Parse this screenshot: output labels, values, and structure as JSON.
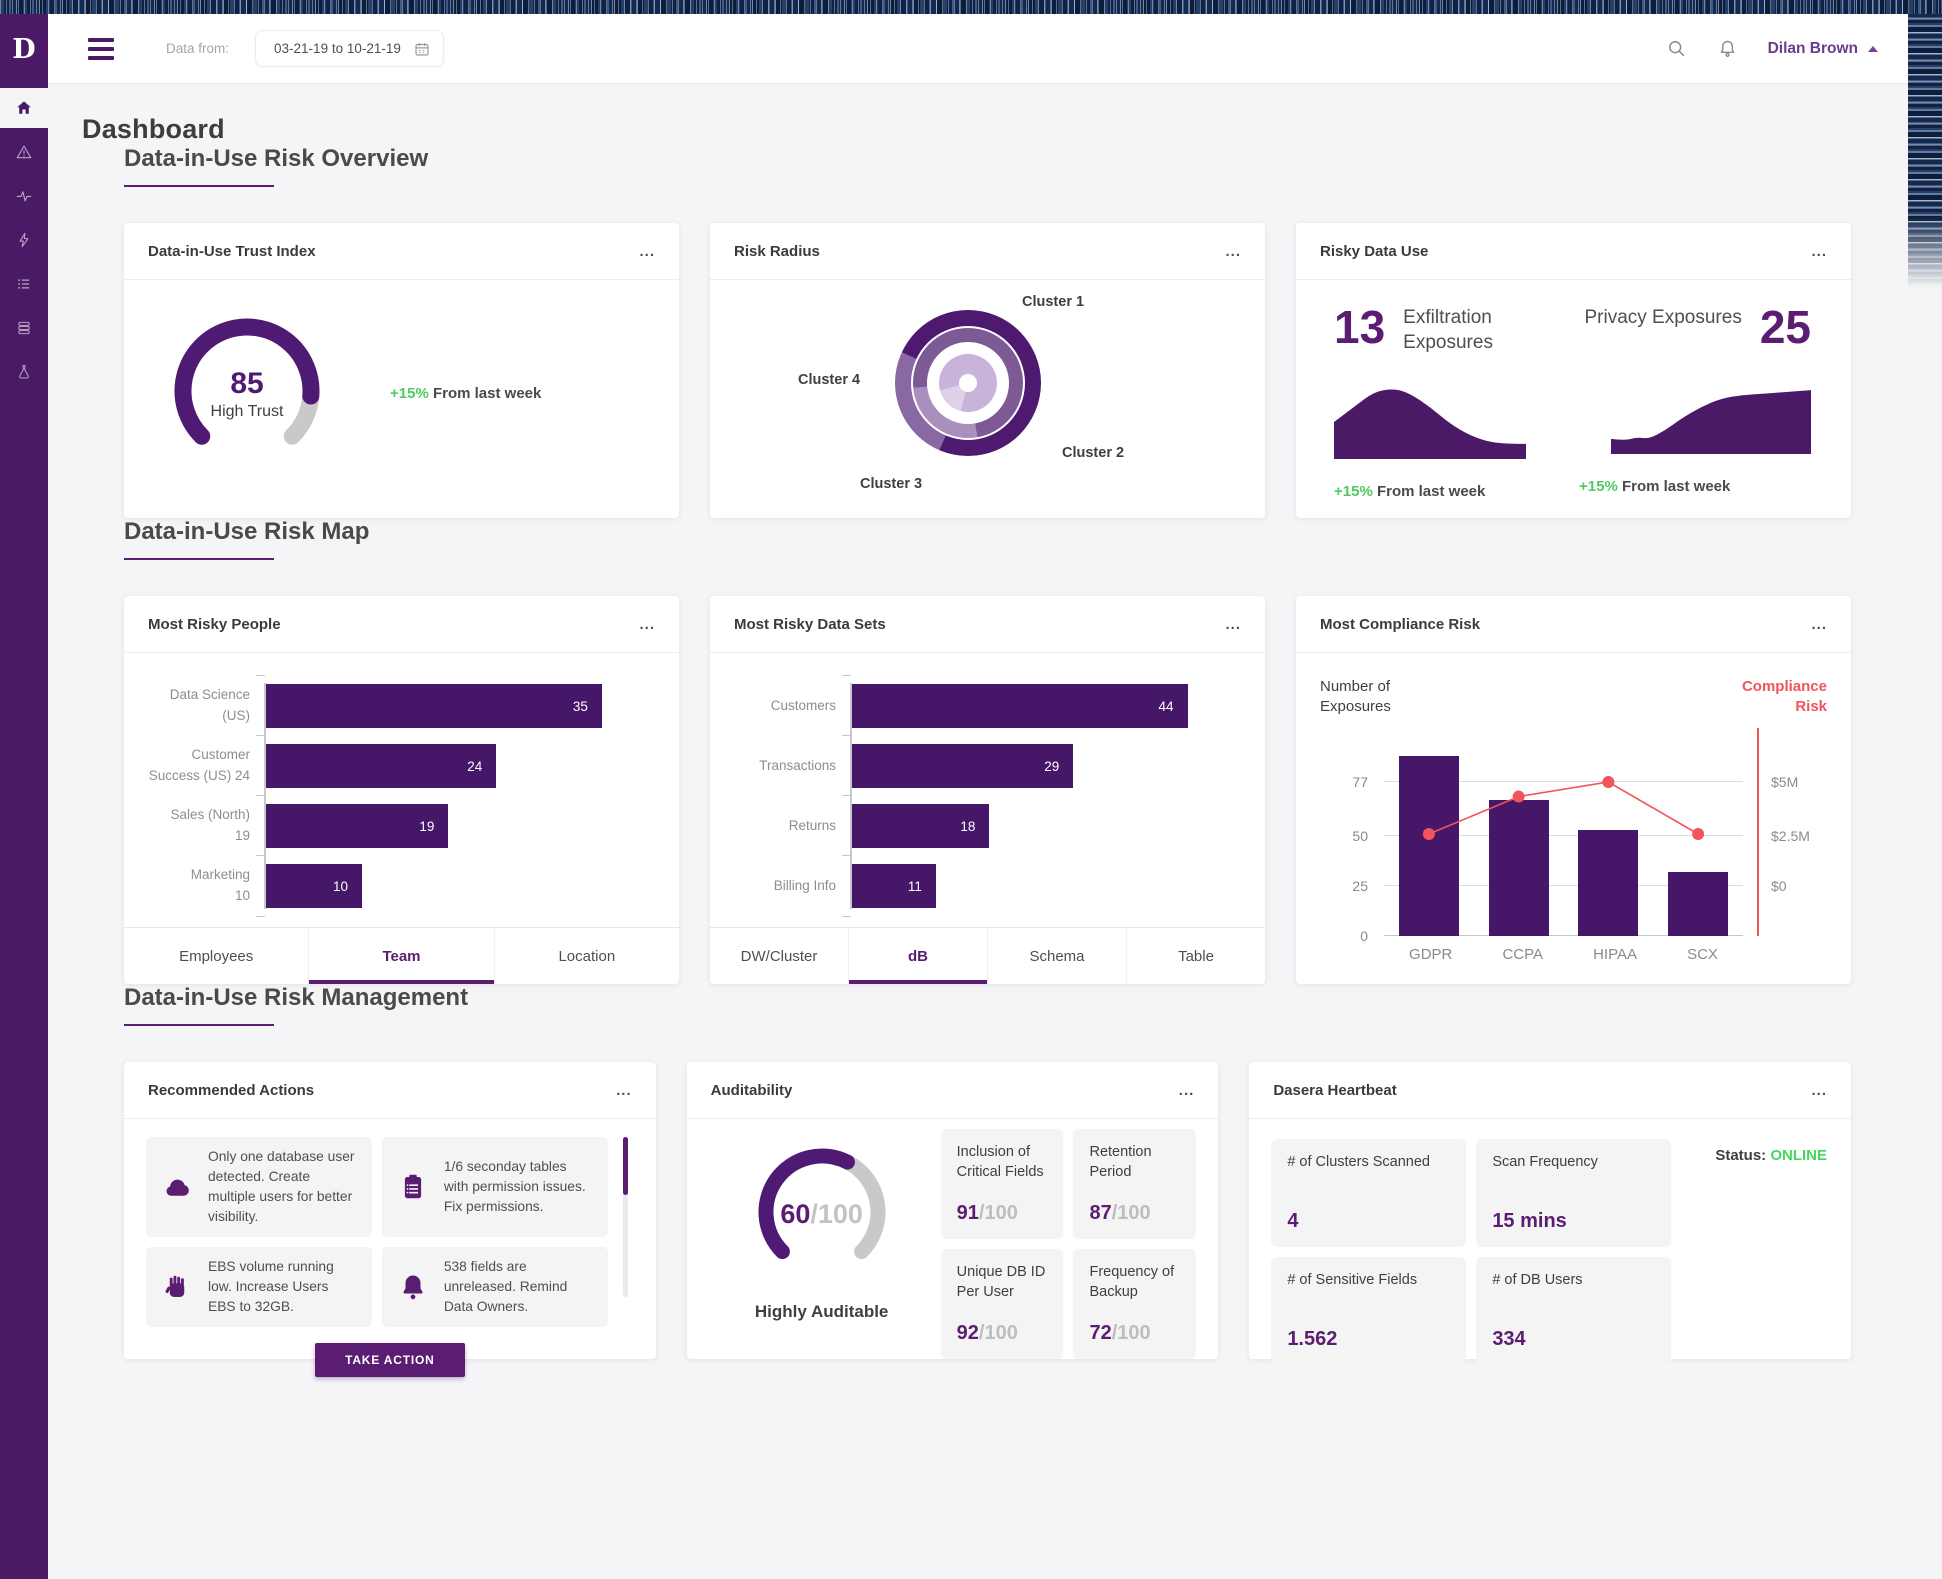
{
  "colors": {
    "brand_purple": "#4a1a66",
    "accent_purple": "#5b1d72",
    "bar_purple": "#461769",
    "gauge_purple": "#4f1a73",
    "gauge_track_gray": "#c9c9c9",
    "coral": "#f2545b",
    "green": "#4ecb5c",
    "status_green": "#44d95c"
  },
  "topbar": {
    "data_from_label": "Data from:",
    "date_range": "03-21-19 to 10-21-19",
    "user_name": "Dilan Brown",
    "icons": [
      "hamburger-icon",
      "calendar-icon",
      "search-icon",
      "bell-icon",
      "caret-up-icon"
    ]
  },
  "sidebar": {
    "logo_text": "D",
    "items": [
      {
        "name": "home",
        "icon": "home-icon",
        "active": true
      },
      {
        "name": "alerts",
        "icon": "warning-triangle-icon",
        "active": false
      },
      {
        "name": "activity",
        "icon": "pulse-icon",
        "active": false
      },
      {
        "name": "quick-actions",
        "icon": "lightning-icon",
        "active": false
      },
      {
        "name": "policies",
        "icon": "bullet-list-icon",
        "active": false
      },
      {
        "name": "data-stores",
        "icon": "stack-icon",
        "active": false
      },
      {
        "name": "labs",
        "icon": "flask-icon",
        "active": false
      }
    ]
  },
  "page_title": "Dashboard",
  "sections": {
    "overview": "Data-in-Use Risk Overview",
    "map": "Data-in-Use Risk Map",
    "management": "Data-in-Use Risk Management"
  },
  "cards": {
    "trust": {
      "title": "Data-in-Use Trust Index",
      "menu": "...",
      "value": "85",
      "label": "High Trust",
      "delta": "+15%",
      "delta_text": " From last week"
    },
    "radius": {
      "title": "Risk Radius",
      "menu": "...",
      "clusters": [
        "Cluster 1",
        "Cluster 2",
        "Cluster 3",
        "Cluster 4"
      ]
    },
    "risky_use": {
      "title": "Risky Data Use",
      "menu": "...",
      "left": {
        "value": "13",
        "label": "Exfiltration Exposures",
        "delta": "+15%",
        "delta_text": " From last week"
      },
      "right": {
        "value": "25",
        "label": "Privacy Exposures",
        "delta": "+15%",
        "delta_text": " From last week"
      }
    },
    "people": {
      "title": "Most Risky People",
      "menu": "...",
      "tabs": [
        "Employees",
        "Team",
        "Location"
      ],
      "active_tab": "Team"
    },
    "datasets": {
      "title": "Most Risky Data Sets",
      "menu": "...",
      "tabs": [
        "DW/Cluster",
        "dB",
        "Schema",
        "Table"
      ],
      "active_tab": "dB"
    },
    "compliance": {
      "title": "Most Compliance Risk",
      "menu": "...",
      "left_axis_title": "Number of Exposures",
      "right_axis_title": "Compliance Risk"
    },
    "actions": {
      "title": "Recommended Actions",
      "menu": "...",
      "button_label": "TAKE ACTION",
      "items": [
        {
          "icon": "cloud-icon",
          "text": "Only one database user detected. Create multiple users for better visibility."
        },
        {
          "icon": "clipboard-icon",
          "text": "1/6 seconday tables with permission issues. Fix permissions."
        },
        {
          "icon": "hand-icon",
          "text": "EBS volume running low. Increase Users  EBS to 32GB."
        },
        {
          "icon": "bell-icon",
          "text": "538 fields are unreleased. Remind Data Owners."
        }
      ]
    },
    "auditability": {
      "title": "Auditability",
      "menu": "...",
      "gauge_value": "60",
      "gauge_suffix": "/100",
      "gauge_label": "Highly Auditable",
      "stats": [
        {
          "label": "Inclusion of Critical Fields",
          "value": "91",
          "suffix": "/100"
        },
        {
          "label": "Retention Period",
          "value": "87",
          "suffix": "/100"
        },
        {
          "label": "Unique DB ID Per User",
          "value": "92",
          "suffix": "/100"
        },
        {
          "label": "Frequency of Backup",
          "value": "72",
          "suffix": "/100"
        }
      ]
    },
    "heartbeat": {
      "title": "Dasera Heartbeat",
      "menu": "...",
      "stats": [
        {
          "label": "# of Clusters Scanned",
          "value": "4"
        },
        {
          "label": "Scan Frequency",
          "value": "15 mins"
        },
        {
          "label": "# of Sensitive Fields",
          "value": "1.562"
        },
        {
          "label": "# of DB Users",
          "value": "334"
        }
      ],
      "status_label": "Status: ",
      "status_value": "ONLINE"
    }
  },
  "chart_data": [
    {
      "id": "trust_gauge",
      "type": "gauge",
      "value": 85,
      "max": 100,
      "center_label": "High Trust",
      "note": "+15% From last week"
    },
    {
      "id": "risk_radius",
      "type": "donut",
      "labels": [
        "Cluster 1",
        "Cluster 2",
        "Cluster 3",
        "Cluster 4"
      ],
      "rings": [
        {
          "name": "outer",
          "segments": [
            {
              "from_deg": 0,
              "to_deg": 203,
              "tone": "dark"
            },
            {
              "from_deg": 203,
              "to_deg": 295,
              "tone": "medium-light"
            },
            {
              "from_deg": 295,
              "to_deg": 360,
              "tone": "dark"
            }
          ]
        },
        {
          "name": "middle",
          "segments": [
            {
              "from_deg": 0,
              "to_deg": 170,
              "tone": "medium"
            },
            {
              "from_deg": 170,
              "to_deg": 265,
              "tone": "light"
            },
            {
              "from_deg": 265,
              "to_deg": 360,
              "tone": "medium"
            }
          ]
        },
        {
          "name": "inner",
          "segments": [
            {
              "from_deg": 0,
              "to_deg": 195,
              "tone": "light"
            },
            {
              "from_deg": 195,
              "to_deg": 255,
              "tone": "lighter"
            },
            {
              "from_deg": 255,
              "to_deg": 360,
              "tone": "light"
            }
          ]
        }
      ]
    },
    {
      "id": "exfiltration_trend",
      "type": "area",
      "value": 13,
      "delta": "+15%",
      "points": [
        [
          0,
          28
        ],
        [
          10,
          19
        ],
        [
          20,
          10
        ],
        [
          30,
          8
        ],
        [
          38,
          11
        ],
        [
          48,
          19
        ],
        [
          58,
          29
        ],
        [
          68,
          36
        ],
        [
          78,
          40
        ],
        [
          88,
          41
        ],
        [
          96,
          41
        ]
      ]
    },
    {
      "id": "privacy_trend",
      "type": "area",
      "value": 25,
      "delta": "+15%",
      "points": [
        [
          0,
          41
        ],
        [
          7,
          42
        ],
        [
          13,
          40
        ],
        [
          19,
          41
        ],
        [
          27,
          36
        ],
        [
          35,
          29
        ],
        [
          45,
          22
        ],
        [
          55,
          17
        ],
        [
          65,
          15
        ],
        [
          77,
          14
        ],
        [
          100,
          12
        ]
      ]
    },
    {
      "id": "most_risky_people",
      "type": "bar",
      "orientation": "horizontal",
      "categories": [
        "Data Science (US)",
        "Customer Success (US)",
        "Sales (North)",
        "Marketing"
      ],
      "label_lines": [
        [
          "Data Science",
          "(US)"
        ],
        [
          "Customer",
          "Success (US) 24"
        ],
        [
          "Sales (North)",
          "19"
        ],
        [
          "Marketing",
          "10"
        ]
      ],
      "values": [
        35,
        24,
        19,
        10
      ],
      "scale_max": 37.2
    },
    {
      "id": "most_risky_datasets",
      "type": "bar",
      "orientation": "horizontal",
      "categories": [
        "Customers",
        "Transactions",
        "Returns",
        "Billing Info"
      ],
      "label_lines": [
        [
          "Customers"
        ],
        [
          "Transactions"
        ],
        [
          "Returns"
        ],
        [
          "Billing Info"
        ]
      ],
      "values": [
        44,
        29,
        18,
        11
      ],
      "scale_max": 46.8
    },
    {
      "id": "compliance_combo",
      "type": "bar+line",
      "categories": [
        "GDPR",
        "CCPA",
        "HIPAA",
        "SCX"
      ],
      "bar_values": [
        90,
        68,
        53,
        32
      ],
      "bar_axis": {
        "title": "Number of Exposures",
        "ticks": [
          0,
          25,
          50,
          77
        ],
        "max": 100
      },
      "line_values_musd": [
        2.5,
        4.3,
        5.0,
        2.5
      ],
      "line_axis": {
        "title": "Compliance Risk",
        "tick_labels": [
          "$0",
          "$2.5M",
          "$5M"
        ],
        "tick_positions_left_units": [
          25,
          50,
          77
        ]
      }
    },
    {
      "id": "auditability_gauge",
      "type": "gauge",
      "value": 60,
      "max": 100,
      "center_label": "Highly Auditable"
    }
  ]
}
